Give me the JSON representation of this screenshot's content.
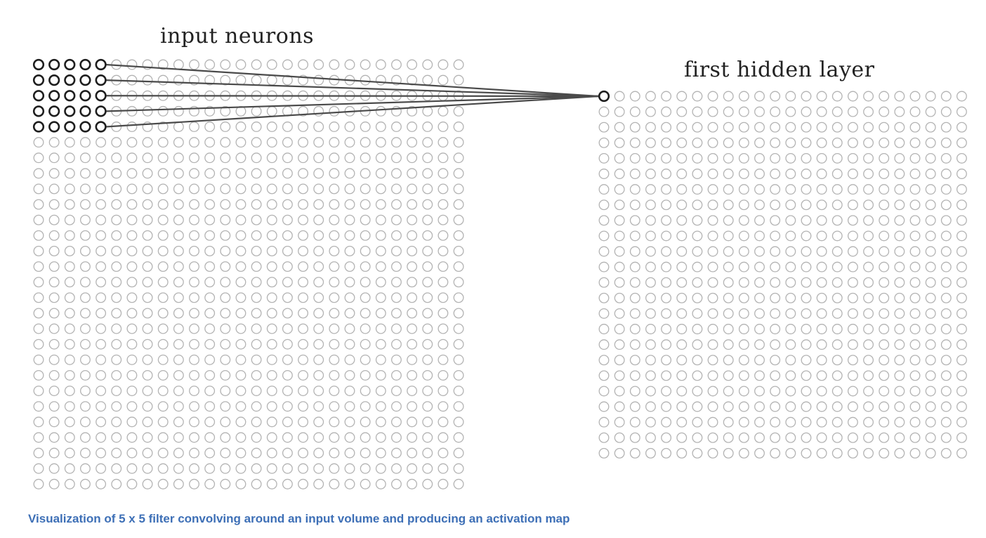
{
  "labels": {
    "input_layer": "input neurons",
    "hidden_layer": "first hidden layer"
  },
  "caption": "Visualization of 5 x 5 filter convolving around an input  volume and producing  an activation map",
  "grids": {
    "input": {
      "rows": 28,
      "cols": 28
    },
    "hidden": {
      "rows": 24,
      "cols": 24
    }
  },
  "filter": {
    "rows": 5,
    "cols": 5
  },
  "colors": {
    "inactive_neuron": "#b3b3b3",
    "active_neuron": "#1e1e1e",
    "connection": "#4a4a4a",
    "caption": "#3d6fb6"
  }
}
